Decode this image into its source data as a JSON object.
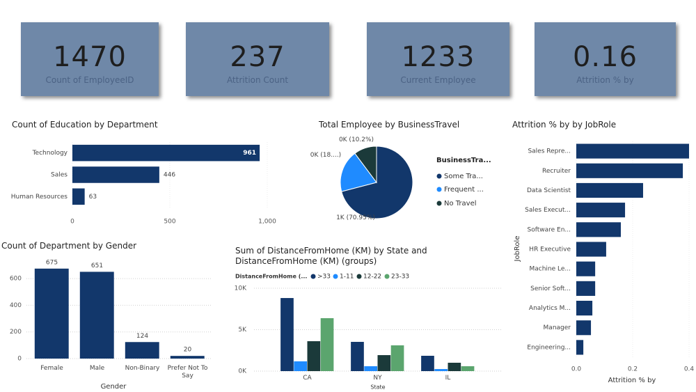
{
  "cards": [
    {
      "value": 1470,
      "label": "Count of EmployeeID"
    },
    {
      "value": 237,
      "label": "Attrition Count"
    },
    {
      "value": 1233,
      "label": "Current Employee"
    },
    {
      "value": 0.16,
      "label": "Attrition % by"
    }
  ],
  "chart_data": [
    {
      "type": "bar",
      "orientation": "horizontal",
      "title": "Count of Education by Department",
      "categories": [
        "Technology",
        "Sales",
        "Human Resources"
      ],
      "values": [
        961,
        446,
        63
      ],
      "color": "#12376b",
      "xlim": [
        0,
        1000
      ],
      "xticks": [
        0,
        500,
        {
          "value": 1000,
          "label": "1,000"
        }
      ],
      "data_labels": true
    },
    {
      "type": "pie",
      "title": "Total Employee by BusinessTravel",
      "legend_title": "BusinessTra...",
      "categories": [
        "Some Tra...",
        "Frequent ...",
        "No Travel"
      ],
      "values": [
        1043,
        277,
        150
      ],
      "value_labels": [
        "1K (70.95%)",
        "0K (18....)",
        "0K (10.2%)"
      ],
      "colors": [
        "#12376b",
        "#1f8bff",
        "#1b3a3a"
      ]
    },
    {
      "type": "bar",
      "orientation": "vertical",
      "title": "Count of Department by Gender",
      "categories": [
        "Female",
        "Male",
        "Non-Binary",
        "Prefer Not To Say"
      ],
      "values": [
        675,
        651,
        124,
        20
      ],
      "color": "#12376b",
      "ylim": [
        0,
        700
      ],
      "yticks": [
        0,
        200,
        400,
        600
      ],
      "x_label": "Gender",
      "data_labels": true,
      "grid": true
    },
    {
      "type": "bar",
      "orientation": "vertical",
      "title": "Sum of DistanceFromHome (KM) by State and DistanceFromHome (KM) (groups)",
      "legend_title": "DistanceFromHome (...",
      "categories": [
        "CA",
        "NY",
        "IL"
      ],
      "series": [
        {
          "name": ">33",
          "color": "#12376b",
          "values": [
            8820,
            3530,
            1850
          ]
        },
        {
          "name": "1-11",
          "color": "#1f8bff",
          "values": [
            1180,
            590,
            250
          ]
        },
        {
          "name": "12-22",
          "color": "#1b3a3a",
          "values": [
            3610,
            1930,
            1010
          ]
        },
        {
          "name": "23-33",
          "color": "#5ba56e",
          "values": [
            6390,
            3110,
            590
          ]
        }
      ],
      "ylim": [
        0,
        10000
      ],
      "yticks": [
        {
          "value": 0,
          "label": "0K"
        },
        {
          "value": 5000,
          "label": "5K"
        },
        {
          "value": 10000,
          "label": "10K"
        }
      ],
      "x_label": "State",
      "grid": true
    },
    {
      "type": "bar",
      "orientation": "horizontal",
      "title": "Attrition % by by JobRole",
      "categories": [
        "Sales Repre...",
        "Recruiter",
        "Data Scientist",
        "Sales Execut...",
        "Software En...",
        "HR Executive",
        "Machine Le...",
        "Senior Soft...",
        "Analytics M...",
        "Manager",
        "Engineering..."
      ],
      "values": [
        0.4,
        0.378,
        0.237,
        0.173,
        0.158,
        0.106,
        0.067,
        0.067,
        0.057,
        0.052,
        0.025
      ],
      "color": "#12376b",
      "xlim": [
        0,
        0.4
      ],
      "xticks": [
        {
          "value": 0,
          "label": "0.0"
        },
        0.2,
        0.4
      ],
      "x_label": "Attrition % by",
      "y_label": "JobRole"
    }
  ]
}
